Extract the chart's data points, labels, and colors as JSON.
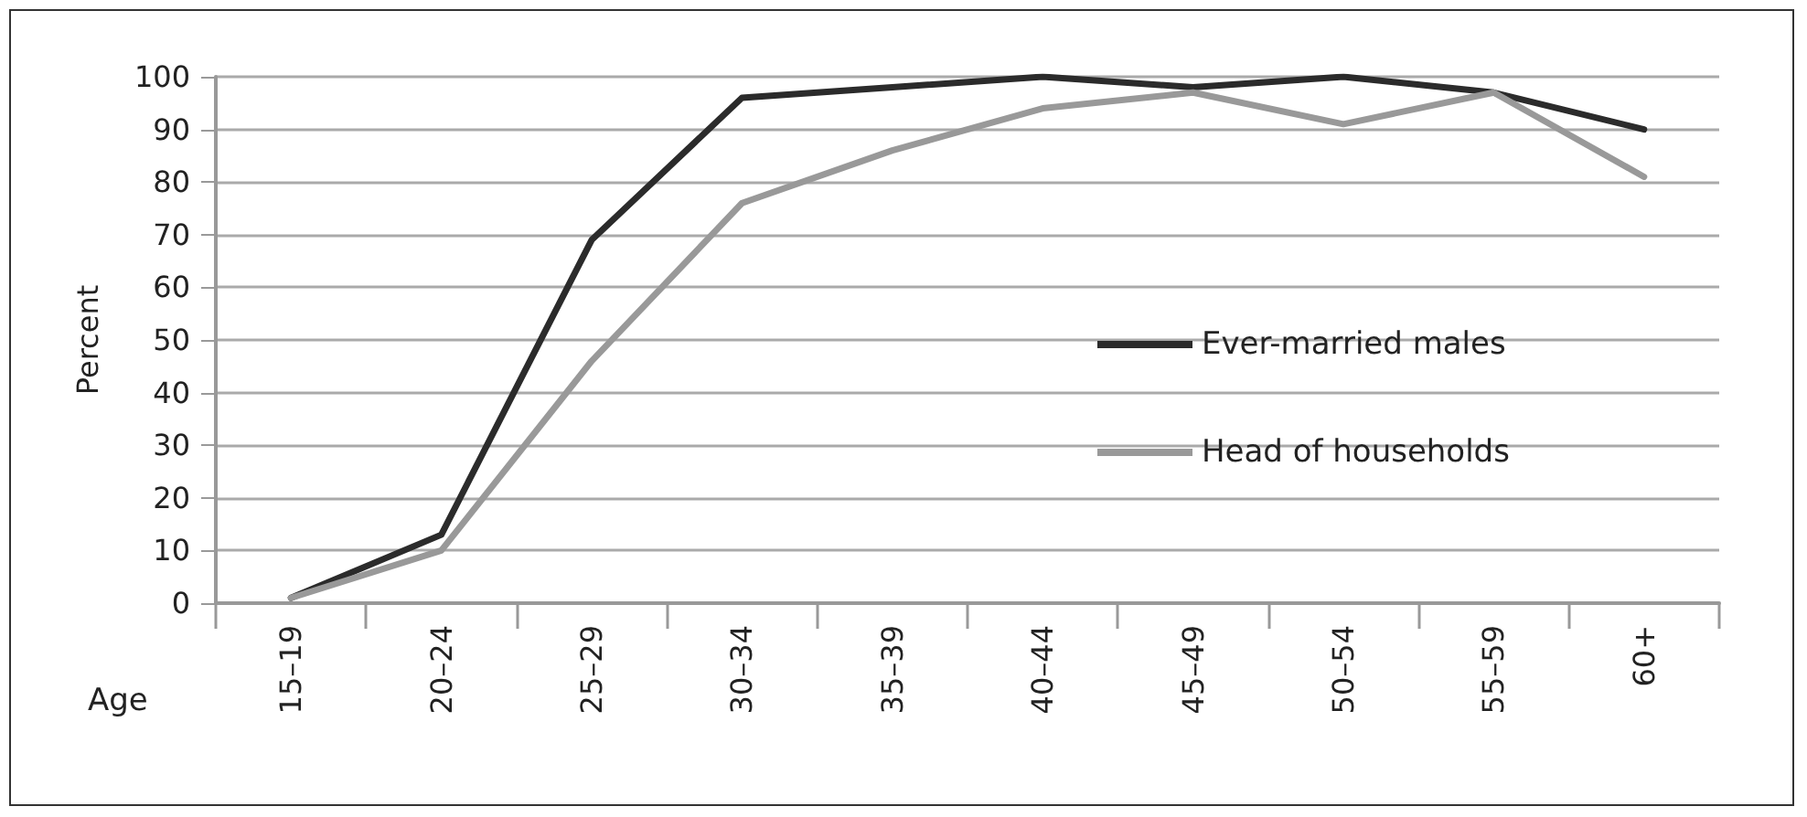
{
  "chart_data": {
    "type": "line",
    "xlabel": "Age",
    "ylabel": "Percent",
    "categories": [
      "15–19",
      "20–24",
      "25–29",
      "30–34",
      "35–39",
      "40–44",
      "45–49",
      "50–54",
      "55–59",
      "60+"
    ],
    "series": [
      {
        "name": "Ever-married males",
        "color": "#2b2b2b",
        "values": [
          1,
          13,
          69,
          96,
          98,
          100,
          98,
          100,
          97,
          90
        ]
      },
      {
        "name": "Head of households",
        "color": "#999999",
        "values": [
          1,
          10,
          46,
          76,
          86,
          94,
          97,
          91,
          97,
          81
        ]
      }
    ],
    "ylim": [
      0,
      100
    ],
    "yticks": [
      0,
      10,
      20,
      30,
      40,
      50,
      60,
      70,
      80,
      90,
      100
    ],
    "grid": "y",
    "legend": "right",
    "marker": "none",
    "line_style": "solid"
  }
}
